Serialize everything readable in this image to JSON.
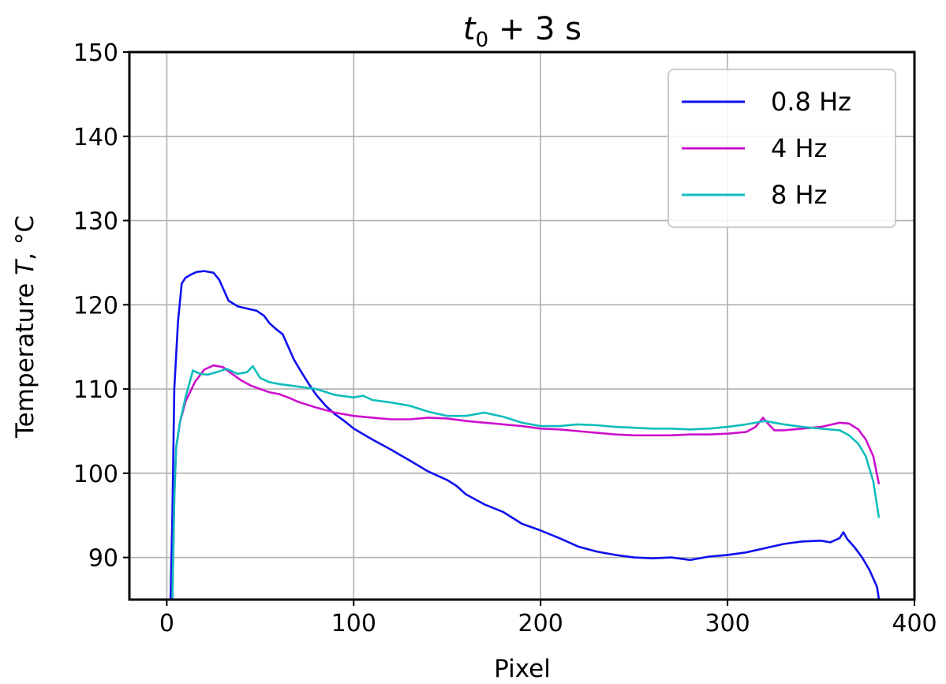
{
  "chart_data": {
    "type": "line",
    "title": "t0 + 3 s",
    "title_main": "t",
    "title_sub": "0",
    "title_rest": " + 3 s",
    "xlabel": "Pixel",
    "ylabel_prefix": "Temperature ",
    "ylabel_var": "T",
    "ylabel_suffix": ", °C",
    "xlim": [
      -20,
      400
    ],
    "ylim": [
      85,
      150
    ],
    "xticks": [
      0,
      100,
      200,
      300,
      400
    ],
    "yticks": [
      90,
      100,
      110,
      120,
      130,
      140,
      150
    ],
    "grid": true,
    "legend_position": "top-right",
    "series": [
      {
        "name": "0.8 Hz",
        "color": "#1010ee",
        "points": [
          [
            2,
            85
          ],
          [
            3,
            95
          ],
          [
            4,
            110
          ],
          [
            6,
            118
          ],
          [
            8,
            122.5
          ],
          [
            10,
            123.2
          ],
          [
            13,
            123.6
          ],
          [
            16,
            123.9
          ],
          [
            20,
            124
          ],
          [
            25,
            123.8
          ],
          [
            28,
            123
          ],
          [
            30,
            122
          ],
          [
            33,
            120.5
          ],
          [
            38,
            119.8
          ],
          [
            42,
            119.6
          ],
          [
            48,
            119.3
          ],
          [
            52,
            118.7
          ],
          [
            55,
            117.8
          ],
          [
            58,
            117.2
          ],
          [
            62,
            116.5
          ],
          [
            65,
            115
          ],
          [
            68,
            113.5
          ],
          [
            72,
            112
          ],
          [
            76,
            110.6
          ],
          [
            80,
            109.3
          ],
          [
            85,
            108
          ],
          [
            90,
            107
          ],
          [
            95,
            106.2
          ],
          [
            100,
            105.3
          ],
          [
            110,
            104
          ],
          [
            120,
            102.8
          ],
          [
            130,
            101.5
          ],
          [
            140,
            100.2
          ],
          [
            150,
            99.2
          ],
          [
            155,
            98.5
          ],
          [
            160,
            97.5
          ],
          [
            170,
            96.3
          ],
          [
            180,
            95.4
          ],
          [
            190,
            94
          ],
          [
            200,
            93.2
          ],
          [
            210,
            92.3
          ],
          [
            220,
            91.3
          ],
          [
            230,
            90.7
          ],
          [
            240,
            90.3
          ],
          [
            250,
            90
          ],
          [
            260,
            89.9
          ],
          [
            270,
            90
          ],
          [
            280,
            89.7
          ],
          [
            290,
            90.1
          ],
          [
            300,
            90.3
          ],
          [
            310,
            90.6
          ],
          [
            320,
            91.1
          ],
          [
            330,
            91.6
          ],
          [
            340,
            91.9
          ],
          [
            350,
            92
          ],
          [
            355,
            91.8
          ],
          [
            360,
            92.3
          ],
          [
            362,
            93
          ],
          [
            364,
            92.2
          ],
          [
            368,
            91.2
          ],
          [
            372,
            90
          ],
          [
            376,
            88.5
          ],
          [
            380,
            86.5
          ],
          [
            381,
            85
          ]
        ]
      },
      {
        "name": "4 Hz",
        "color": "#cc10cc",
        "points": [
          [
            3,
            85
          ],
          [
            4,
            97
          ],
          [
            5,
            103
          ],
          [
            7,
            106
          ],
          [
            10,
            108.5
          ],
          [
            15,
            110.8
          ],
          [
            20,
            112.3
          ],
          [
            25,
            112.8
          ],
          [
            30,
            112.6
          ],
          [
            35,
            111.8
          ],
          [
            40,
            111
          ],
          [
            45,
            110.4
          ],
          [
            50,
            110
          ],
          [
            55,
            109.6
          ],
          [
            60,
            109.4
          ],
          [
            65,
            109
          ],
          [
            70,
            108.5
          ],
          [
            80,
            107.8
          ],
          [
            90,
            107.2
          ],
          [
            100,
            106.8
          ],
          [
            110,
            106.6
          ],
          [
            120,
            106.4
          ],
          [
            130,
            106.4
          ],
          [
            140,
            106.6
          ],
          [
            150,
            106.5
          ],
          [
            160,
            106.2
          ],
          [
            170,
            106
          ],
          [
            180,
            105.8
          ],
          [
            190,
            105.6
          ],
          [
            200,
            105.3
          ],
          [
            210,
            105.2
          ],
          [
            220,
            105
          ],
          [
            230,
            104.8
          ],
          [
            240,
            104.6
          ],
          [
            250,
            104.5
          ],
          [
            260,
            104.5
          ],
          [
            270,
            104.5
          ],
          [
            280,
            104.6
          ],
          [
            290,
            104.6
          ],
          [
            300,
            104.7
          ],
          [
            310,
            104.9
          ],
          [
            315,
            105.5
          ],
          [
            319,
            106.6
          ],
          [
            322,
            105.8
          ],
          [
            325,
            105.1
          ],
          [
            330,
            105.1
          ],
          [
            340,
            105.3
          ],
          [
            350,
            105.5
          ],
          [
            360,
            106
          ],
          [
            365,
            105.9
          ],
          [
            370,
            105.2
          ],
          [
            374,
            104
          ],
          [
            378,
            102
          ],
          [
            381,
            98.7
          ]
        ]
      },
      {
        "name": "8 Hz",
        "color": "#10bcbc",
        "points": [
          [
            3,
            85
          ],
          [
            4,
            97
          ],
          [
            5,
            103
          ],
          [
            7,
            106
          ],
          [
            10,
            109
          ],
          [
            14,
            112.2
          ],
          [
            18,
            111.8
          ],
          [
            22,
            111.7
          ],
          [
            28,
            112.1
          ],
          [
            32,
            112.4
          ],
          [
            38,
            111.8
          ],
          [
            43,
            112
          ],
          [
            46,
            112.7
          ],
          [
            50,
            111.3
          ],
          [
            55,
            110.8
          ],
          [
            60,
            110.6
          ],
          [
            70,
            110.3
          ],
          [
            80,
            110
          ],
          [
            90,
            109.3
          ],
          [
            100,
            109
          ],
          [
            105,
            109.2
          ],
          [
            110,
            108.7
          ],
          [
            120,
            108.4
          ],
          [
            130,
            108
          ],
          [
            140,
            107.3
          ],
          [
            150,
            106.8
          ],
          [
            160,
            106.8
          ],
          [
            170,
            107.2
          ],
          [
            180,
            106.7
          ],
          [
            190,
            106
          ],
          [
            200,
            105.6
          ],
          [
            210,
            105.6
          ],
          [
            220,
            105.8
          ],
          [
            230,
            105.7
          ],
          [
            240,
            105.5
          ],
          [
            250,
            105.4
          ],
          [
            260,
            105.3
          ],
          [
            270,
            105.3
          ],
          [
            280,
            105.2
          ],
          [
            290,
            105.3
          ],
          [
            300,
            105.5
          ],
          [
            310,
            105.8
          ],
          [
            320,
            106.2
          ],
          [
            325,
            106
          ],
          [
            330,
            105.8
          ],
          [
            340,
            105.5
          ],
          [
            350,
            105.3
          ],
          [
            360,
            105.1
          ],
          [
            365,
            104.5
          ],
          [
            370,
            103.5
          ],
          [
            374,
            102
          ],
          [
            378,
            99
          ],
          [
            381,
            94.7
          ]
        ]
      }
    ]
  }
}
